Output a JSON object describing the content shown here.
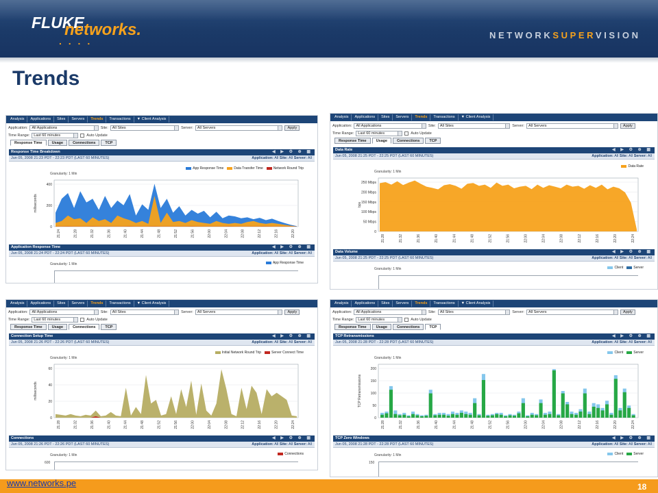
{
  "header": {
    "logo_fluke": "FLUKE",
    "logo_networks": "networks.",
    "logo_dots": ". . . .",
    "tagline_a": "NETWORK",
    "tagline_b": "SUPER",
    "tagline_c": "VISION"
  },
  "title": "Trends",
  "colors": {
    "navy": "#1d4577",
    "orange": "#f7a21c",
    "blue_series": "#2a7bd9",
    "olive_series": "#b6ad63",
    "green_series": "#27a845",
    "lightblue_series": "#85c7ec",
    "red_series": "#c1271f"
  },
  "nav": {
    "tabs": [
      "Analysis",
      "Applications",
      "Sites",
      "Servers",
      "Trends",
      "Transactions",
      "▼ Client Analysis"
    ],
    "active": "Trends"
  },
  "filters": {
    "application_label": "Application:",
    "application_value": "All Applications",
    "site_label": "Site:",
    "site_value": "All Sites",
    "server_label": "Server:",
    "server_value": "All Servers",
    "apply_label": "Apply",
    "time_range_label": "Time Range:",
    "time_range_value": "Last 60 minutes",
    "auto_update_label": "Auto Update"
  },
  "subtabs": [
    "Response Time",
    "Usage",
    "Connections",
    "TCP"
  ],
  "context": {
    "application": "Application:",
    "all": "All",
    "site": "Site:",
    "server": "Server:"
  },
  "granularity": "Granularity: 1 Min",
  "panels": [
    {
      "active_subtab": "Response Time",
      "section1_title": "Response Time Breakdown",
      "section1_date": "Jun 05, 2008 21:23 PDT - 22:23 PDT (LAST 60 MINUTES)",
      "legend": [
        "App Response Time",
        "Data Transfer Time",
        "Network Round Trip"
      ],
      "ylabel": "milliseconds",
      "yticks": [
        "400",
        "200",
        "0"
      ],
      "xticks": [
        "21:24",
        "21:28",
        "21:32",
        "21:36",
        "21:40",
        "21:44",
        "21:48",
        "21:52",
        "21:56",
        "22:00",
        "22:04",
        "22:08",
        "22:12",
        "22:16",
        "22:20"
      ],
      "section2_title": "Application Response Time",
      "section2_date": "Jun 05, 2008 21:24 PDT - 22:24 PDT (LAST 60 MINUTES)",
      "legend2": [
        "App Response Time"
      ]
    },
    {
      "active_subtab": "Usage",
      "section1_title": "Data Rate",
      "section1_date": "Jun 05, 2008 21:25 PDT - 22:25 PDT (LAST 60 MINUTES)",
      "legend": [
        "Data Rate"
      ],
      "ylabel": "bps",
      "yticks": [
        "250 Mbps",
        "200 Mbps",
        "150 Mbps",
        "100 Mbps",
        "50 Mbps",
        "0"
      ],
      "xticks": [
        "21:28",
        "21:32",
        "21:36",
        "21:40",
        "21:44",
        "21:48",
        "21:52",
        "21:56",
        "22:00",
        "22:04",
        "22:08",
        "22:12",
        "22:16",
        "22:20",
        "22:24"
      ],
      "section2_title": "Data Volume",
      "section2_date": "Jun 05, 2008 21:25 PDT - 22:25 PDT (LAST 60 MINUTES)",
      "legend2": [
        "Client",
        "Server"
      ]
    },
    {
      "active_subtab": "Connections",
      "section1_title": "Connection Setup Time",
      "section1_date": "Jun 05, 2008 21:26 PDT - 22:26 PDT (LAST 60 MINUTES)",
      "legend": [
        "Initial Network Round Trip",
        "Server Connect Time"
      ],
      "ylabel": "milliseconds",
      "yticks": [
        "60",
        "40",
        "20",
        "0"
      ],
      "xticks": [
        "21:28",
        "21:32",
        "21:36",
        "21:40",
        "21:44",
        "21:48",
        "21:52",
        "21:56",
        "22:00",
        "22:04",
        "22:08",
        "22:12",
        "22:16",
        "22:20",
        "22:24"
      ],
      "section2_title": "Connections",
      "section2_date": "Jun 05, 2008 21:26 PDT - 22:26 PDT (LAST 60 MINUTES)",
      "legend2": [
        "Connections"
      ],
      "section2_ytick": "600"
    },
    {
      "active_subtab": "TCP",
      "section1_title": "TCP Retransmissions",
      "section1_date": "Jun 05, 2008 21:28 PDT - 22:28 PDT (LAST 60 MINUTES)",
      "legend": [
        "Client",
        "Server"
      ],
      "ylabel": "TCP Retransmissions",
      "yticks": [
        "200",
        "150",
        "100",
        "50",
        "0"
      ],
      "xticks": [
        "21:28",
        "21:32",
        "21:36",
        "21:40",
        "21:44",
        "21:48",
        "21:52",
        "21:56",
        "22:00",
        "22:04",
        "22:08",
        "22:12",
        "22:16",
        "22:20",
        "22:24"
      ],
      "section2_title": "TCP Zero Windows",
      "section2_date": "Jun 05, 2008 21:28 PDT - 22:28 PDT (LAST 60 MINUTES)",
      "legend2": [
        "Client",
        "Server"
      ],
      "section2_ytick": "150"
    }
  ],
  "chart_data": [
    {
      "type": "area",
      "title": "Response Time Breakdown",
      "ylabel": "milliseconds",
      "ylim": [
        0,
        500
      ],
      "series": [
        {
          "name": "App Response Time",
          "values": [
            150,
            300,
            360,
            200,
            380,
            260,
            300,
            180,
            330,
            200,
            280,
            230,
            350,
            120,
            240,
            180,
            460,
            200,
            300,
            150,
            220,
            120,
            180,
            140,
            170,
            100,
            160,
            90,
            120,
            110,
            90,
            100,
            80,
            95,
            70,
            85,
            60,
            40,
            20,
            5
          ]
        },
        {
          "name": "Data Transfer Time",
          "values": [
            40,
            60,
            120,
            80,
            90,
            40,
            100,
            60,
            80,
            40,
            120,
            90,
            70,
            40,
            60,
            30,
            330,
            40,
            150,
            50,
            60,
            40,
            70,
            50,
            40,
            30,
            60,
            40,
            30,
            40,
            30,
            50,
            60,
            40,
            30,
            40,
            30,
            20,
            10,
            2
          ]
        },
        {
          "name": "Network Round Trip",
          "values": [
            2,
            2,
            3,
            2,
            2,
            2,
            3,
            2,
            2,
            2,
            2,
            2,
            3,
            2,
            2,
            2,
            3,
            2,
            2,
            2,
            2,
            2,
            3,
            2,
            2,
            2,
            2,
            2,
            3,
            2,
            2,
            2,
            2,
            2,
            3,
            2,
            2,
            2,
            2,
            1
          ]
        }
      ]
    },
    {
      "type": "area",
      "title": "Data Rate",
      "ylabel": "bps",
      "ylim": [
        0,
        260
      ],
      "series": [
        {
          "name": "Data Rate",
          "values": [
            235,
            240,
            228,
            244,
            226,
            238,
            248,
            232,
            218,
            212,
            205,
            225,
            230,
            222,
            208,
            232,
            236,
            222,
            228,
            212,
            238,
            222,
            228,
            210,
            218,
            222,
            206,
            228,
            212,
            225,
            218,
            210,
            228,
            218,
            222,
            208,
            225,
            212,
            228,
            205,
            218,
            210,
            190,
            140,
            10
          ]
        }
      ]
    },
    {
      "type": "area",
      "title": "Connection Setup Time",
      "ylabel": "milliseconds",
      "ylim": [
        0,
        75
      ],
      "series": [
        {
          "name": "Initial Network Round Trip",
          "values": [
            5,
            4,
            3,
            5,
            3,
            2,
            4,
            3,
            10,
            2,
            3,
            8,
            3,
            2,
            42,
            3,
            15,
            5,
            60,
            20,
            25,
            3,
            5,
            30,
            5,
            40,
            15,
            52,
            4,
            48,
            10,
            3,
            20,
            68,
            40,
            5,
            2,
            42,
            12,
            45,
            35,
            5,
            40,
            30,
            35,
            30,
            25,
            3,
            2
          ]
        },
        {
          "name": "Server Connect Time",
          "values": [
            0,
            0,
            0,
            0,
            0,
            0,
            0,
            0,
            2,
            0,
            0,
            0,
            0,
            0,
            0,
            0,
            0,
            0,
            0,
            0,
            0,
            0,
            0,
            0,
            0,
            0,
            0,
            0,
            0,
            0,
            0,
            0,
            0,
            0,
            0,
            0,
            0,
            0,
            0,
            0,
            0,
            0,
            0,
            0,
            0,
            0,
            0,
            0,
            0
          ]
        }
      ]
    },
    {
      "type": "bar",
      "title": "TCP Retransmissions",
      "ylabel": "TCP Retransmissions",
      "ylim": [
        0,
        220
      ],
      "series": [
        {
          "name": "Client",
          "values": [
            20,
            25,
            130,
            30,
            15,
            20,
            10,
            25,
            15,
            10,
            12,
            115,
            15,
            20,
            20,
            15,
            25,
            20,
            30,
            25,
            20,
            80,
            15,
            180,
            12,
            15,
            20,
            20,
            10,
            15,
            12,
            25,
            80,
            10,
            20,
            15,
            75,
            20,
            25,
            200,
            15,
            110,
            65,
            25,
            20,
            35,
            120,
            25,
            60,
            55,
            40,
            70,
            20,
            175,
            40,
            120,
            50,
            15
          ]
        },
        {
          "name": "Server",
          "values": [
            12,
            18,
            115,
            15,
            10,
            12,
            6,
            15,
            10,
            6,
            8,
            100,
            10,
            12,
            12,
            8,
            15,
            12,
            20,
            15,
            12,
            60,
            10,
            155,
            8,
            10,
            15,
            12,
            6,
            10,
            8,
            18,
            60,
            6,
            12,
            10,
            60,
            12,
            15,
            195,
            10,
            100,
            55,
            15,
            12,
            25,
            100,
            15,
            45,
            40,
            30,
            55,
            12,
            160,
            30,
            105,
            40,
            10
          ]
        }
      ]
    }
  ]
}
